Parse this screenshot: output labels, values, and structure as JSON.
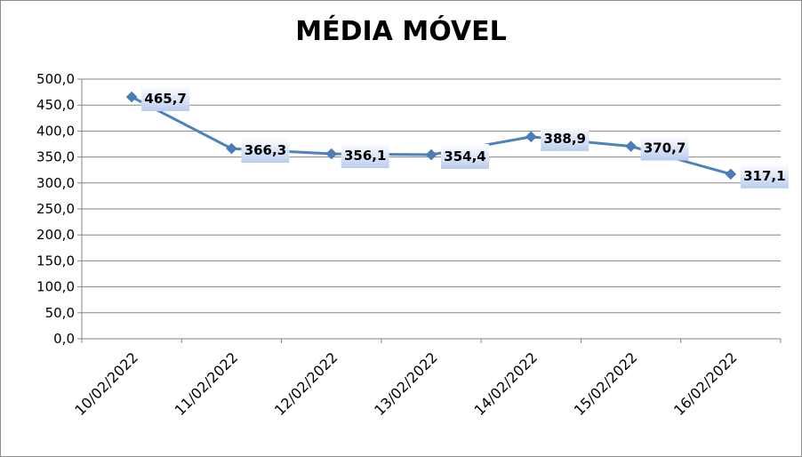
{
  "chart_data": {
    "type": "line",
    "title": "MÉDIA MÓVEL",
    "categories": [
      "10/02/2022",
      "11/02/2022",
      "12/02/2022",
      "13/02/2022",
      "14/02/2022",
      "15/02/2022",
      "16/02/2022"
    ],
    "series": [
      {
        "values": [
          465.7,
          366.3,
          356.1,
          354.4,
          388.9,
          370.7,
          317.1
        ],
        "labels": [
          "465,7",
          "366,3",
          "356,1",
          "354,4",
          "388,9",
          "370,7",
          "317,1"
        ]
      }
    ],
    "ylim": [
      0,
      500
    ],
    "yticks": [
      "0,0",
      "50,0",
      "100,0",
      "150,0",
      "200,0",
      "250,0",
      "300,0",
      "350,0",
      "400,0",
      "450,0",
      "500,0"
    ],
    "grid": true,
    "legend": "none",
    "colors": {
      "line": "#4f81bd",
      "marker": "#4a7ebb",
      "label_box_top": "#ffffff",
      "label_box_bottom": "#b9cdef",
      "grid": "#868686"
    }
  }
}
